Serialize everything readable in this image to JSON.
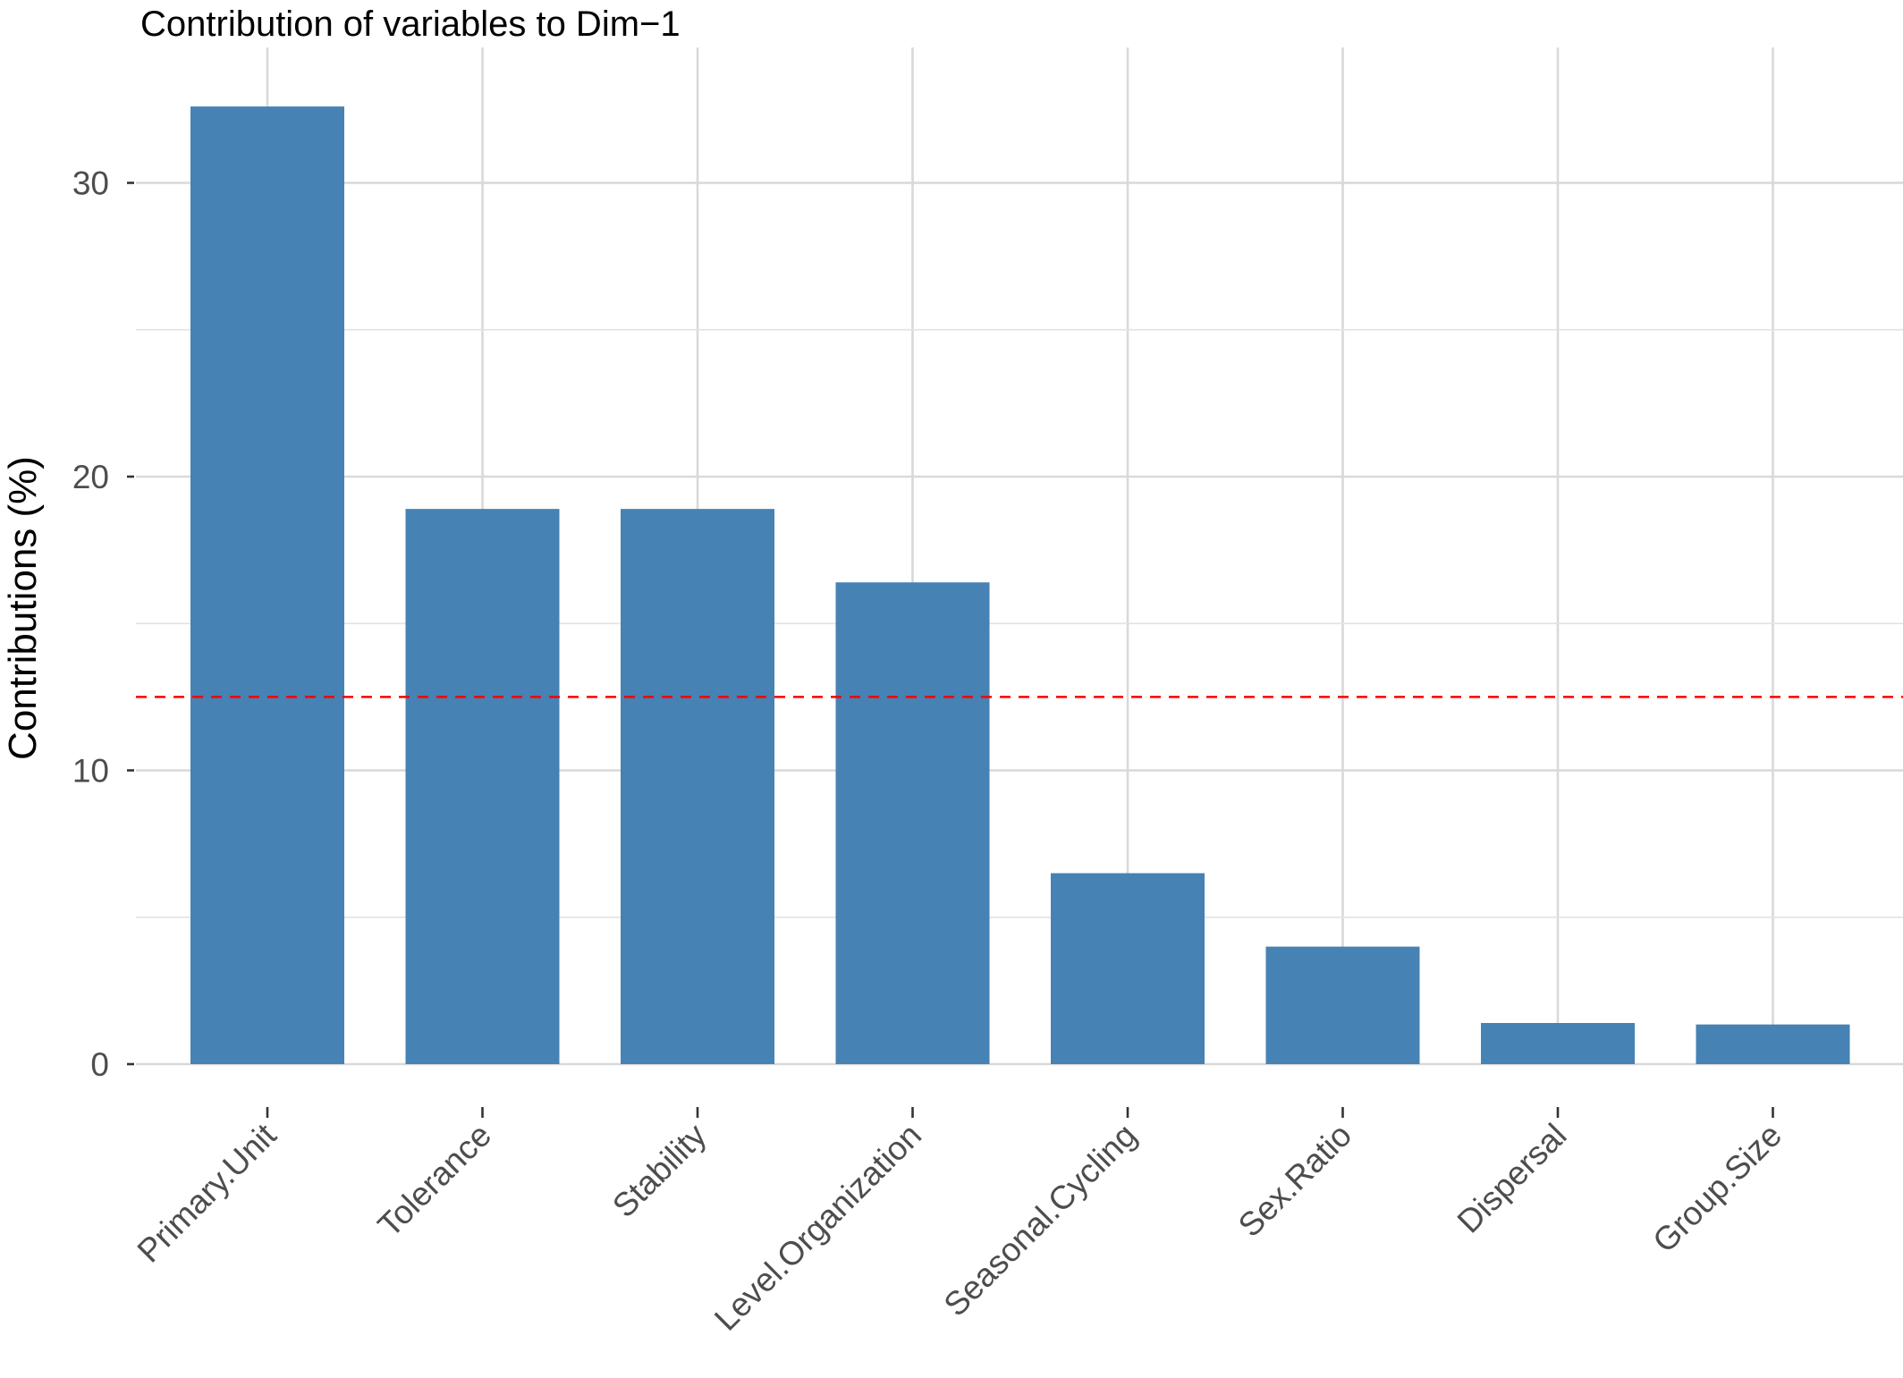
{
  "chart_data": {
    "type": "bar",
    "title": "Contribution of variables to Dim−1",
    "ylabel": "Contributions (%)",
    "xlabel": "",
    "categories": [
      "Primary.Unit",
      "Tolerance",
      "Stability",
      "Level.Organization",
      "Seasonal.Cycling",
      "Sex.Ratio",
      "Dispersal",
      "Group.Size"
    ],
    "values": [
      32.6,
      18.9,
      18.9,
      16.4,
      6.5,
      4.0,
      1.4,
      1.35
    ],
    "ylim": [
      0,
      34
    ],
    "yticks": [
      "0",
      "10",
      "20",
      "30"
    ],
    "reference_line": 12.5,
    "grid": true,
    "colors": {
      "bar": "#4682B4",
      "reference_line": "#FF0000"
    }
  }
}
